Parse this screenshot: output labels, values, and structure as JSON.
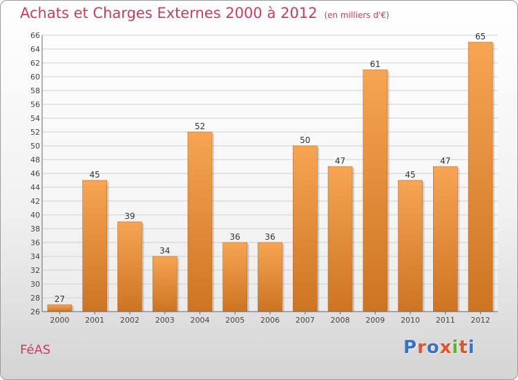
{
  "title": "Achats et Charges Externes 2000 à 2012",
  "unit": "(en milliers d'€)",
  "commune": "FéAS",
  "logo": {
    "text": "Proxiti",
    "letter_colors": [
      "#3a73c4",
      "#e8502a",
      "#3a73c4",
      "#e8502a",
      "#5ab431",
      "#e8502a",
      "#3a73c4"
    ]
  },
  "colors": {
    "title": "#cc3c5a",
    "bar_light": "#f6a553",
    "bar_dark": "#cd7422"
  },
  "chart_data": {
    "type": "bar",
    "categories": [
      "2000",
      "2001",
      "2002",
      "2003",
      "2004",
      "2005",
      "2006",
      "2007",
      "2008",
      "2009",
      "2010",
      "2011",
      "2012"
    ],
    "values": [
      27,
      45,
      39,
      34,
      52,
      36,
      36,
      50,
      47,
      61,
      45,
      47,
      65
    ],
    "ylim": [
      26,
      66
    ],
    "yticks": [
      26,
      28,
      30,
      32,
      34,
      36,
      38,
      40,
      42,
      44,
      46,
      48,
      50,
      52,
      54,
      56,
      58,
      60,
      62,
      64,
      66
    ],
    "grid": true
  }
}
